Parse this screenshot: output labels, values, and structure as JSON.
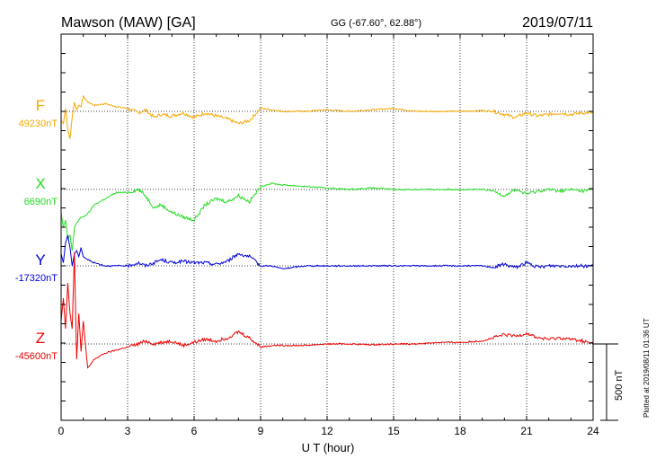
{
  "header": {
    "station": "Mawson (MAW)  [GA]",
    "coords": "GG (-67.60°,  62.88°)",
    "date": "2019/07/11"
  },
  "footer_note": "Plotted at 2019/08/11 01:36 UT",
  "scale_label": "500 nT",
  "chart_data": {
    "type": "line",
    "title": "Mawson (MAW)  [GA]",
    "xlabel": "U T (hour)",
    "ylabel": "",
    "xlim": [
      0,
      24
    ],
    "x_ticks": [
      0,
      3,
      6,
      9,
      12,
      15,
      18,
      21,
      24
    ],
    "grid": true,
    "scale_bar_nT": 500,
    "series": [
      {
        "name": "F",
        "baseline_label": "49230nT",
        "color": "#f5a800",
        "x": [
          0,
          0.1,
          0.2,
          0.3,
          0.4,
          0.5,
          0.6,
          0.7,
          0.8,
          0.9,
          1.0,
          1.2,
          1.5,
          2,
          2.5,
          3,
          3.5,
          3.8,
          4.2,
          4.5,
          5,
          5.5,
          6,
          6.5,
          7,
          7.5,
          8,
          8.5,
          9,
          9.5,
          10,
          11,
          12,
          13,
          14,
          15,
          16,
          17,
          18,
          19,
          19.5,
          20,
          20.5,
          21,
          21.5,
          22,
          22.5,
          23,
          23.5,
          24
        ],
        "values": [
          -60,
          -80,
          20,
          -120,
          -180,
          -40,
          60,
          10,
          40,
          30,
          100,
          60,
          40,
          50,
          30,
          20,
          -10,
          10,
          -40,
          -20,
          -30,
          -10,
          -40,
          -10,
          -30,
          -50,
          -80,
          -60,
          20,
          10,
          0,
          0,
          10,
          0,
          10,
          20,
          0,
          0,
          0,
          5,
          0,
          -20,
          -40,
          -10,
          -30,
          -20,
          -10,
          -20,
          -10,
          -10
        ]
      },
      {
        "name": "X",
        "baseline_label": "6690nT",
        "color": "#22dd22",
        "x": [
          0,
          0.1,
          0.2,
          0.3,
          0.4,
          0.5,
          0.6,
          0.7,
          0.8,
          0.9,
          1.0,
          1.2,
          1.5,
          2,
          2.5,
          3,
          3.5,
          3.8,
          4.2,
          4.5,
          5,
          5.5,
          6,
          6.5,
          7,
          7.5,
          8,
          8.5,
          9,
          9.5,
          10,
          11,
          12,
          13,
          14,
          15,
          16,
          17,
          18,
          19,
          19.5,
          20,
          20.5,
          21,
          21.5,
          22,
          22.5,
          23,
          23.5,
          24
        ],
        "values": [
          -150,
          -250,
          -200,
          -320,
          -300,
          -400,
          -250,
          -220,
          -200,
          -180,
          -180,
          -160,
          -100,
          -60,
          -20,
          -20,
          0,
          -40,
          -120,
          -100,
          -150,
          -180,
          -200,
          -100,
          -60,
          -80,
          -40,
          -80,
          20,
          40,
          30,
          20,
          10,
          0,
          10,
          0,
          0,
          0,
          0,
          0,
          -10,
          -40,
          0,
          -30,
          -10,
          0,
          -10,
          0,
          -10,
          0
        ]
      },
      {
        "name": "Y",
        "baseline_label": "-17320nT",
        "color": "#0000dd",
        "x": [
          0,
          0.1,
          0.2,
          0.3,
          0.4,
          0.5,
          0.6,
          0.7,
          0.8,
          0.9,
          1.0,
          1.2,
          1.5,
          2,
          2.5,
          3,
          3.5,
          3.8,
          4.2,
          4.5,
          5,
          5.5,
          6,
          6.5,
          7,
          7.5,
          8,
          8.5,
          9,
          9.5,
          10,
          11,
          12,
          13,
          14,
          15,
          16,
          17,
          18,
          19,
          19.5,
          20,
          20.5,
          21,
          21.5,
          22,
          22.5,
          23,
          23.5,
          24
        ],
        "values": [
          80,
          20,
          150,
          200,
          120,
          0,
          80,
          100,
          60,
          120,
          60,
          40,
          20,
          0,
          0,
          0,
          20,
          0,
          20,
          40,
          20,
          30,
          20,
          20,
          10,
          30,
          80,
          60,
          0,
          0,
          -20,
          0,
          0,
          0,
          0,
          0,
          0,
          0,
          0,
          0,
          -10,
          10,
          -10,
          20,
          -10,
          0,
          0,
          0,
          0,
          0
        ]
      },
      {
        "name": "Z",
        "baseline_label": "-45600nT",
        "color": "#ee0000",
        "x": [
          0,
          0.1,
          0.2,
          0.3,
          0.4,
          0.5,
          0.6,
          0.7,
          0.8,
          0.9,
          1.0,
          1.2,
          1.5,
          2,
          2.5,
          3,
          3.5,
          3.8,
          4.2,
          4.5,
          5,
          5.5,
          6,
          6.5,
          7,
          7.5,
          8,
          8.5,
          9,
          9.5,
          10,
          11,
          12,
          13,
          14,
          15,
          16,
          17,
          18,
          19,
          19.5,
          20,
          20.5,
          21,
          21.5,
          22,
          22.5,
          23,
          23.5,
          24
        ],
        "values": [
          150,
          300,
          100,
          400,
          200,
          100,
          600,
          -100,
          200,
          -50,
          150,
          -160,
          -100,
          -60,
          -40,
          -20,
          0,
          20,
          0,
          10,
          20,
          -10,
          10,
          30,
          20,
          40,
          80,
          40,
          -20,
          -10,
          -10,
          -10,
          0,
          0,
          -5,
          0,
          0,
          10,
          10,
          20,
          40,
          60,
          50,
          70,
          40,
          30,
          40,
          30,
          20,
          0
        ]
      }
    ]
  }
}
